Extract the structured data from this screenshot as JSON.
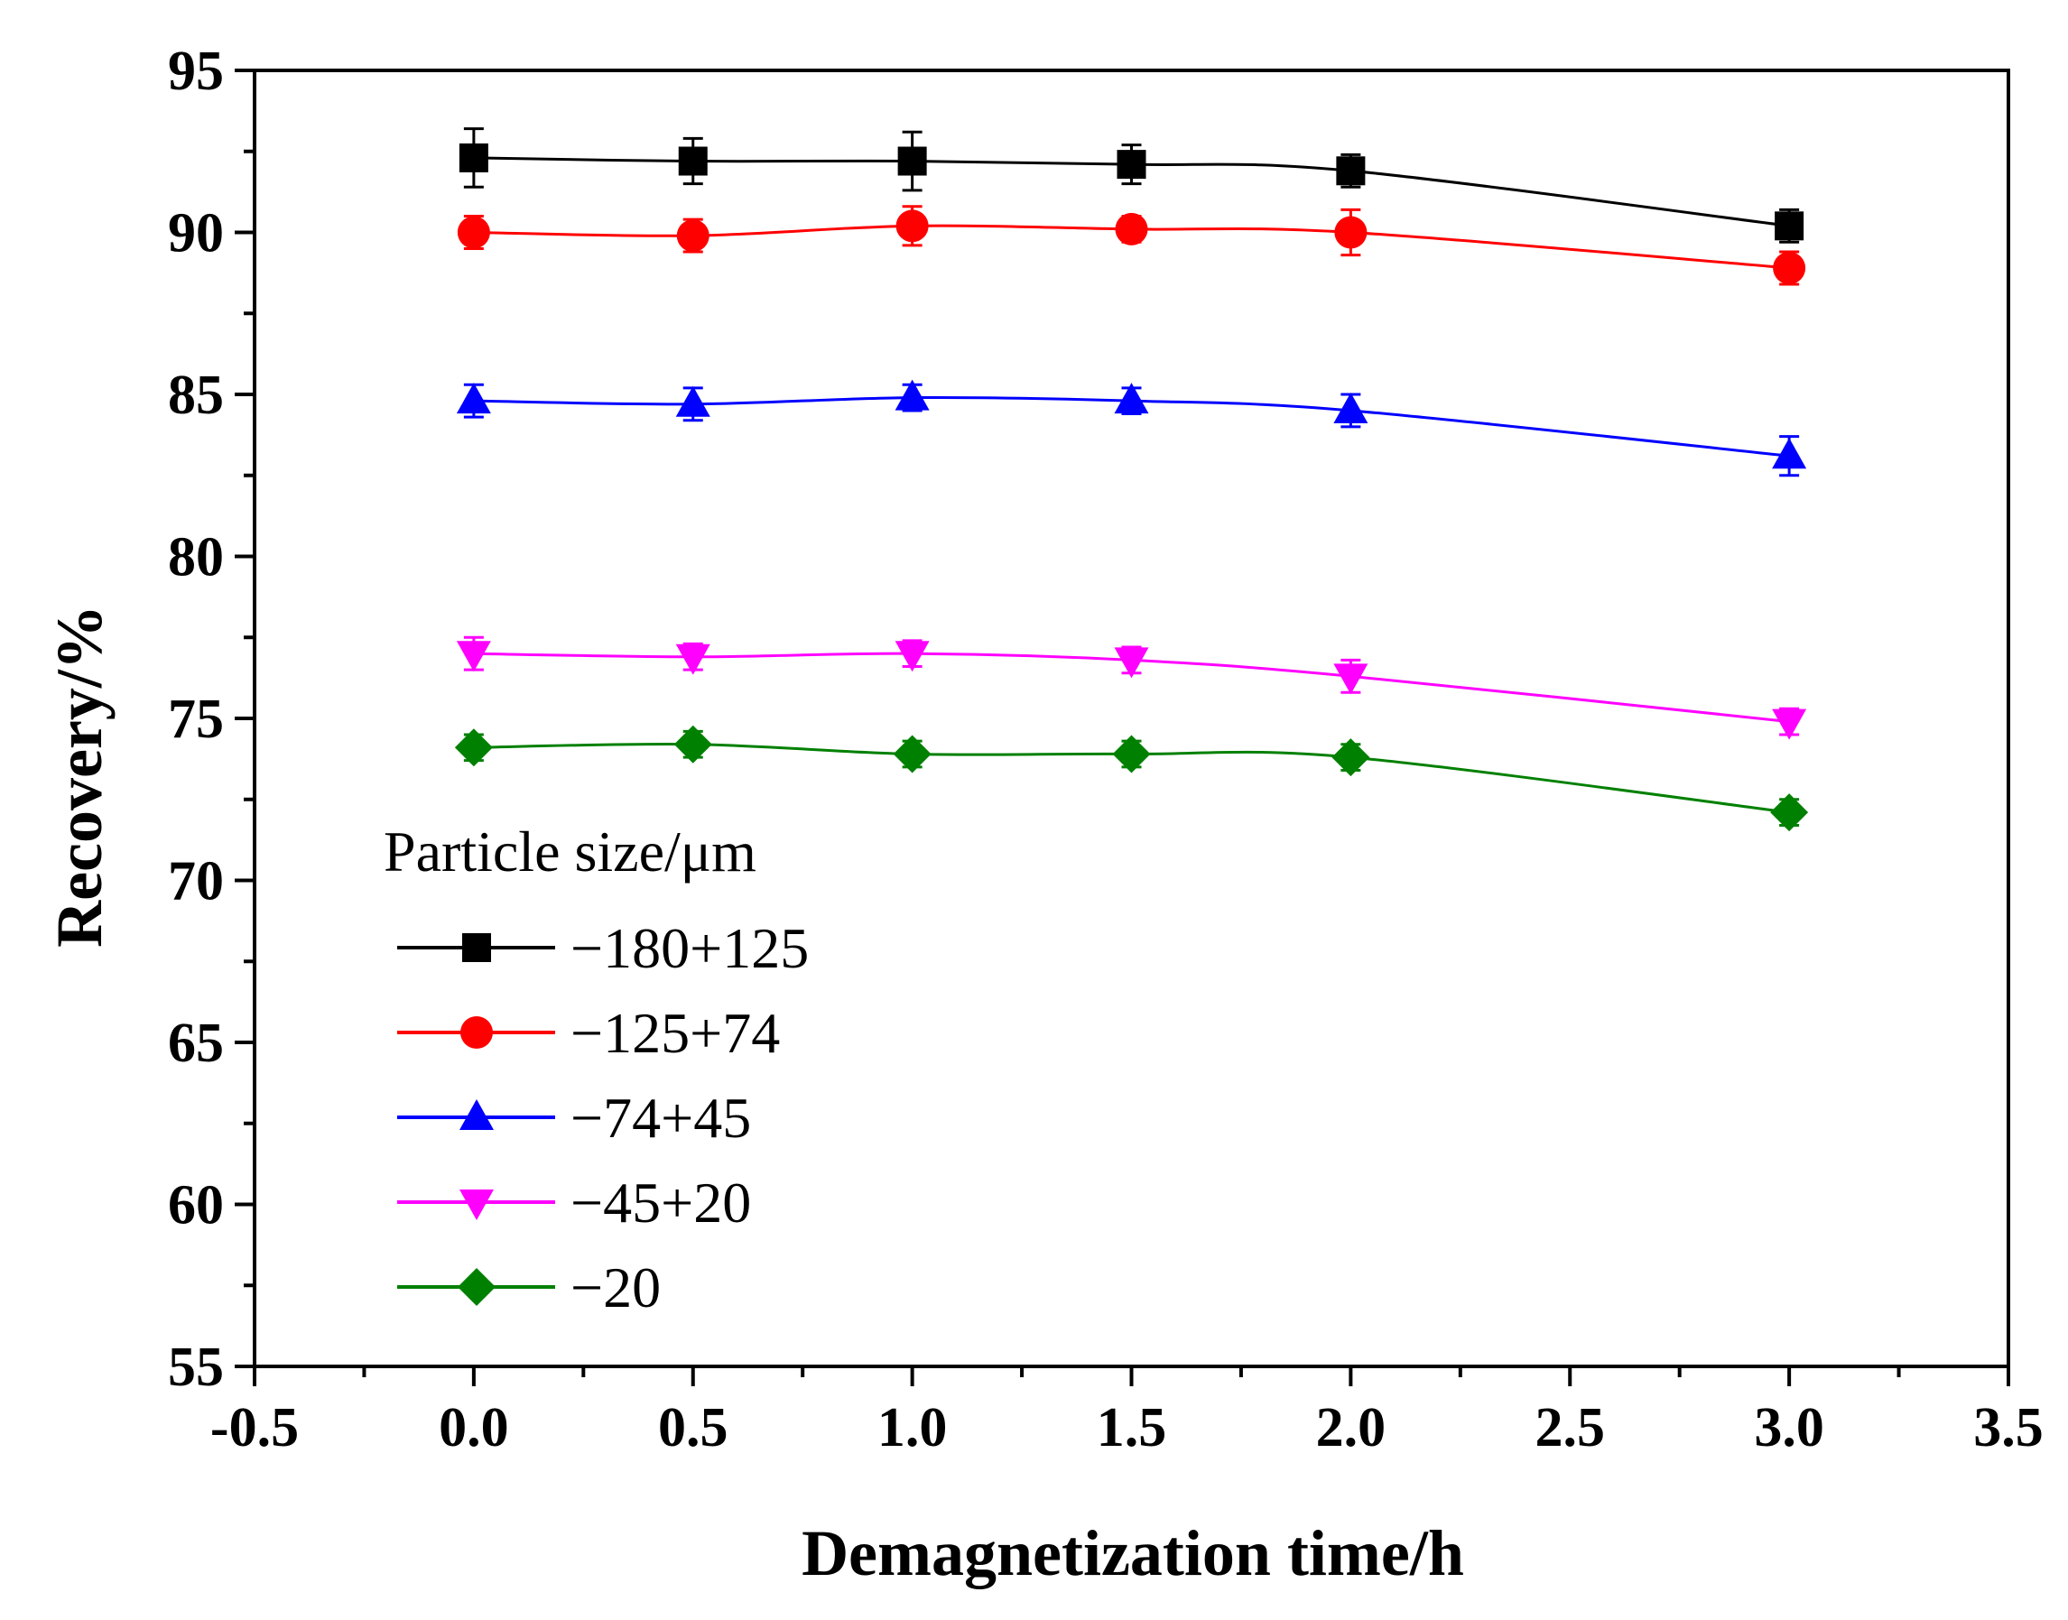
{
  "chart_data": {
    "type": "line",
    "title": "",
    "xlabel": "Demagnetization time/h",
    "ylabel": "Recovery/%",
    "xlim": [
      -0.5,
      3.5
    ],
    "ylim": [
      55,
      95
    ],
    "xticks": [
      "-0.5",
      "0.0",
      "0.5",
      "1.0",
      "1.5",
      "2.0",
      "2.5",
      "3.0",
      "3.5"
    ],
    "yticks": [
      "55",
      "60",
      "65",
      "70",
      "75",
      "80",
      "85",
      "90",
      "95"
    ],
    "x": [
      0.0,
      0.5,
      1.0,
      1.5,
      2.0,
      3.0
    ],
    "legend_title": "Particle size/μm",
    "legend_position": "bottom-left",
    "grid": false,
    "series": [
      {
        "name": "−180+125",
        "color": "#000000",
        "marker": "square",
        "values": [
          92.3,
          92.2,
          92.2,
          92.1,
          91.9,
          90.2
        ],
        "errors": [
          0.9,
          0.7,
          0.9,
          0.6,
          0.5,
          0.5
        ]
      },
      {
        "name": "−125+74",
        "color": "#ff0000",
        "marker": "circle",
        "values": [
          90.0,
          89.9,
          90.2,
          90.1,
          90.0,
          88.9
        ],
        "errors": [
          0.5,
          0.5,
          0.6,
          0.4,
          0.7,
          0.5
        ]
      },
      {
        "name": "−74+45",
        "color": "#0000ff",
        "marker": "triangle-up",
        "values": [
          84.8,
          84.7,
          84.9,
          84.8,
          84.5,
          83.1
        ],
        "errors": [
          0.5,
          0.5,
          0.4,
          0.4,
          0.5,
          0.6
        ]
      },
      {
        "name": "−45+20",
        "color": "#ff00ff",
        "marker": "triangle-down",
        "values": [
          77.0,
          76.9,
          77.0,
          76.8,
          76.3,
          74.9
        ],
        "errors": [
          0.5,
          0.4,
          0.4,
          0.4,
          0.5,
          0.4
        ]
      },
      {
        "name": "−20",
        "color": "#008000",
        "marker": "diamond",
        "values": [
          74.1,
          74.2,
          73.9,
          73.9,
          73.8,
          72.1
        ],
        "errors": [
          0.4,
          0.4,
          0.4,
          0.4,
          0.4,
          0.4
        ]
      }
    ]
  }
}
